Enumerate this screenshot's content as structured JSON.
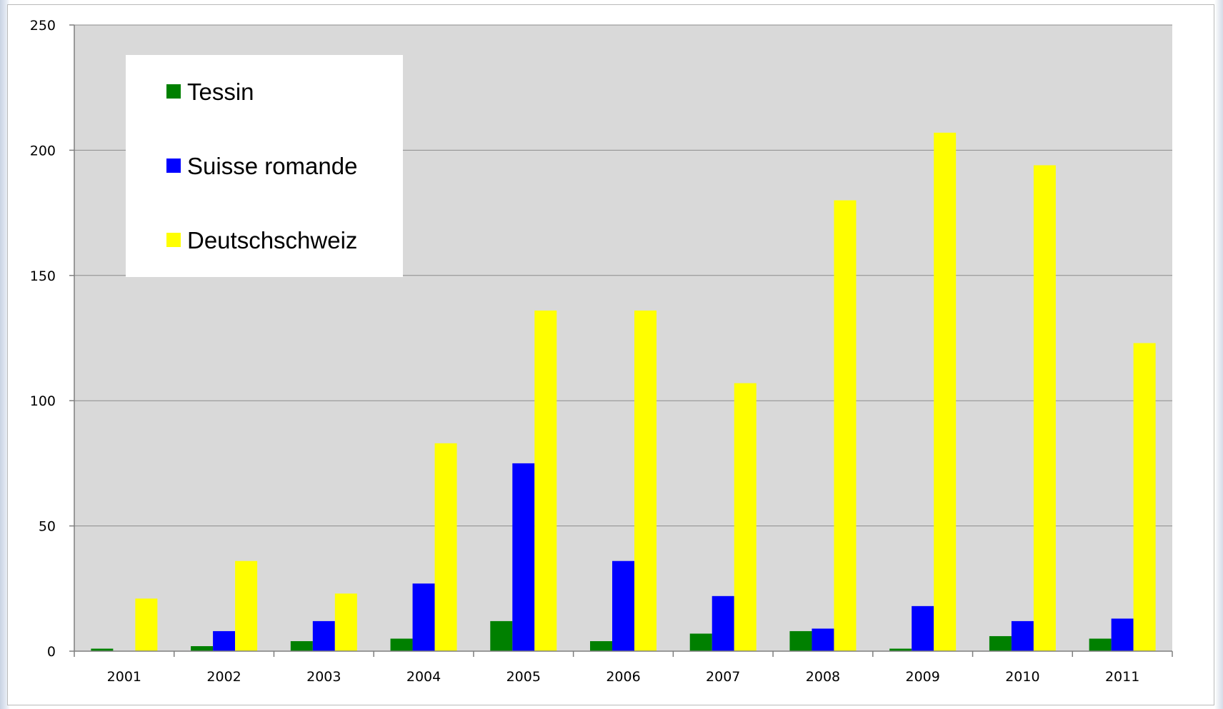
{
  "chart_data": {
    "type": "bar",
    "title": "",
    "xlabel": "",
    "ylabel": "",
    "categories": [
      "2001",
      "2002",
      "2003",
      "2004",
      "2005",
      "2006",
      "2007",
      "2008",
      "2009",
      "2010",
      "2011"
    ],
    "series": [
      {
        "name": "Tessin",
        "color": "#008000",
        "values": [
          1,
          2,
          4,
          5,
          12,
          4,
          7,
          8,
          1,
          6,
          5
        ]
      },
      {
        "name": "Suisse romande",
        "color": "#0000ff",
        "values": [
          0,
          8,
          12,
          27,
          75,
          36,
          22,
          9,
          18,
          12,
          13
        ]
      },
      {
        "name": "Deutschschweiz",
        "color": "#ffff00",
        "values": [
          21,
          36,
          23,
          83,
          136,
          136,
          107,
          180,
          207,
          194,
          123
        ]
      }
    ],
    "ylim": [
      0,
      250
    ],
    "yticks": [
      0,
      50,
      100,
      150,
      200,
      250
    ],
    "grid": true,
    "plot_background": "#d9d9d9",
    "legend_position": "top-left"
  }
}
